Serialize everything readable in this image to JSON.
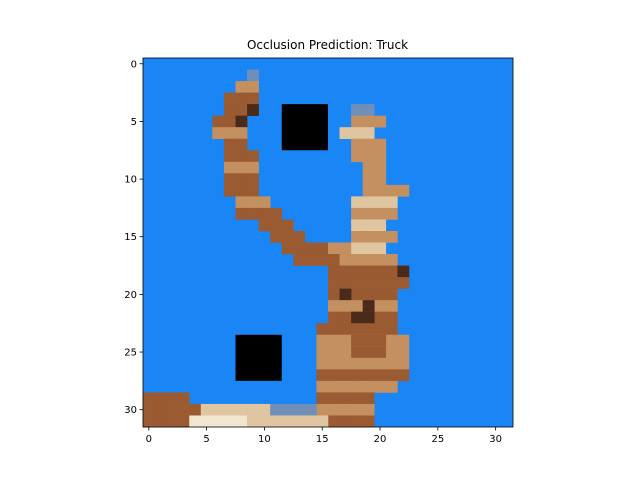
{
  "title": "Occlusion Prediction: Truck",
  "image": {
    "grid_size": 32,
    "background_color": "#1a85f5",
    "occlusion_color": "#000000",
    "occlusion_patches": [
      {
        "rows": [
          4,
          7
        ],
        "cols": [
          12,
          15
        ]
      },
      {
        "rows": [
          24,
          27
        ],
        "cols": [
          8,
          11
        ]
      }
    ]
  },
  "axes": {
    "x_ticks": [
      "0",
      "5",
      "10",
      "15",
      "20",
      "25",
      "30"
    ],
    "y_ticks": [
      "0",
      "5",
      "10",
      "15",
      "20",
      "25",
      "30"
    ]
  },
  "colors": {
    "dark_brown": "#4a2a1a",
    "brown": "#9a5a32",
    "tan": "#c49060",
    "light_tan": "#e0c6a0",
    "cream": "#f2e6d0",
    "gray_blue": "#6f8fb8"
  }
}
